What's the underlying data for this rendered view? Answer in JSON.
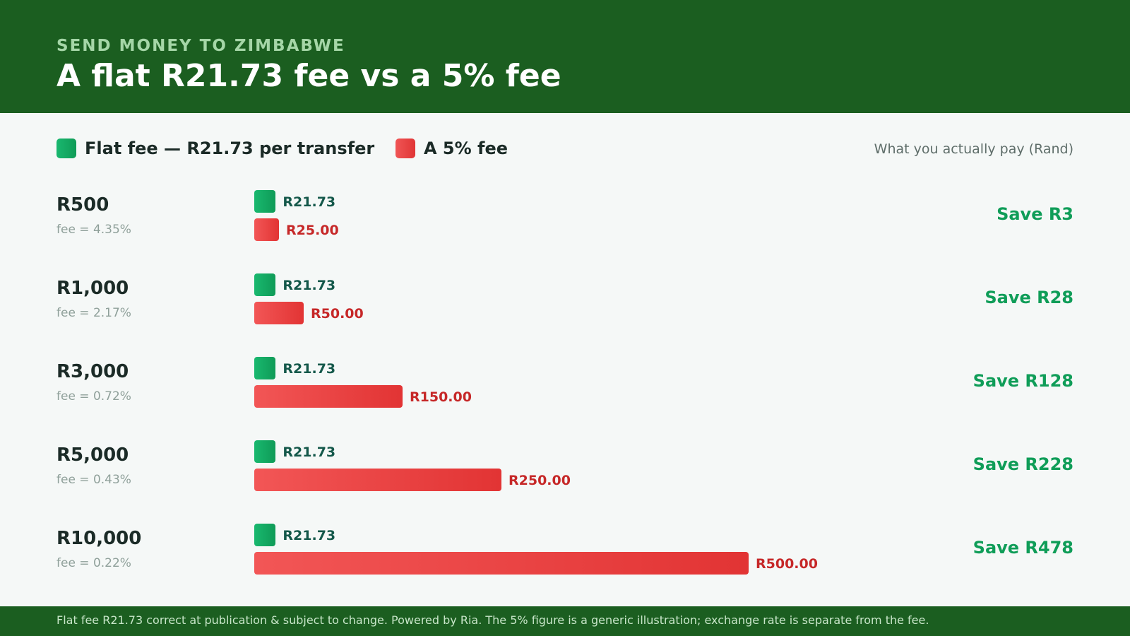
{
  "header": {
    "kicker": "SEND MONEY TO ZIMBABWE",
    "title": "A flat R21.73 fee vs a 5% fee"
  },
  "legend": {
    "flat_label": "Flat fee — R21.73 per transfer",
    "pct_label": "A 5% fee",
    "axis_note": "What you actually pay (Rand)"
  },
  "colors": {
    "flat": "#0f9b57",
    "pct": "#e03535",
    "header_bg": "#1b5e20",
    "save": "#0f9d58"
  },
  "chart_data": {
    "type": "bar",
    "orientation": "horizontal",
    "categories": [
      "R500",
      "R1,000",
      "R3,000",
      "R5,000",
      "R10,000"
    ],
    "series": [
      {
        "name": "Flat fee — R21.73 per transfer",
        "values": [
          21.73,
          21.73,
          21.73,
          21.73,
          21.73
        ]
      },
      {
        "name": "A 5% fee",
        "values": [
          25,
          50,
          150,
          250,
          500
        ]
      }
    ],
    "xlim": [
      0,
      500
    ],
    "ylabel": "What you actually pay (Rand)",
    "legend_position": "top-left",
    "grid": false
  },
  "rows": [
    {
      "amount": "R500",
      "fee_pct": "fee = 4.35%",
      "flat_label": "R21.73",
      "pct_label": "R25.00",
      "save": "Save R3"
    },
    {
      "amount": "R1,000",
      "fee_pct": "fee = 2.17%",
      "flat_label": "R21.73",
      "pct_label": "R50.00",
      "save": "Save R28"
    },
    {
      "amount": "R3,000",
      "fee_pct": "fee = 0.72%",
      "flat_label": "R21.73",
      "pct_label": "R150.00",
      "save": "Save R128"
    },
    {
      "amount": "R5,000",
      "fee_pct": "fee = 0.43%",
      "flat_label": "R21.73",
      "pct_label": "R250.00",
      "save": "Save R228"
    },
    {
      "amount": "R10,000",
      "fee_pct": "fee = 0.22%",
      "flat_label": "R21.73",
      "pct_label": "R500.00",
      "save": "Save R478"
    }
  ],
  "footer": {
    "text": "Flat fee R21.73 correct at publication & subject to change. Powered by Ria. The 5% figure is a generic illustration; exchange rate is separate from the fee."
  }
}
